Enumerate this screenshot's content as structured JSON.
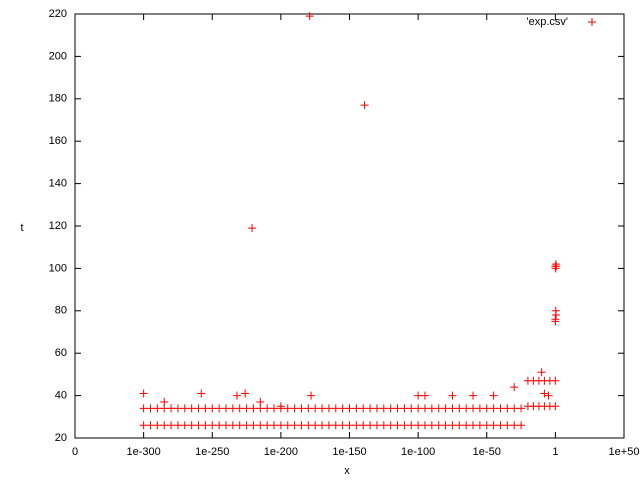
{
  "chart_data": {
    "type": "scatter",
    "x_label": "x",
    "y_label": "t",
    "xscale": "log10-exponent",
    "xlim": [
      -350,
      50
    ],
    "xticks": [
      {
        "value": -350,
        "label": "0"
      },
      {
        "value": -300,
        "label": "1e-300"
      },
      {
        "value": -250,
        "label": "1e-250"
      },
      {
        "value": -200,
        "label": "1e-200"
      },
      {
        "value": -150,
        "label": "1e-150"
      },
      {
        "value": -100,
        "label": "1e-100"
      },
      {
        "value": -50,
        "label": "1e-50"
      },
      {
        "value": 0,
        "label": "1"
      },
      {
        "value": 50,
        "label": "1e+50"
      }
    ],
    "ylim": [
      20,
      220
    ],
    "yticks": [
      20,
      40,
      60,
      80,
      100,
      120,
      140,
      160,
      180,
      200,
      220
    ],
    "legend": "top-right",
    "series": [
      {
        "name": "'exp.csv'",
        "color": "#ff0000",
        "x": [
          -300,
          -295,
          -290,
          -285,
          -280,
          -275,
          -270,
          -265,
          -260,
          -255,
          -250,
          -245,
          -240,
          -235,
          -230,
          -225,
          -220,
          -215,
          -210,
          -205,
          -200,
          -195,
          -190,
          -185,
          -180,
          -175,
          -170,
          -165,
          -160,
          -155,
          -150,
          -145,
          -140,
          -135,
          -130,
          -125,
          -120,
          -115,
          -110,
          -105,
          -100,
          -95,
          -90,
          -85,
          -80,
          -75,
          -70,
          -65,
          -60,
          -55,
          -50,
          -45,
          -40,
          -35,
          -30,
          -25,
          -300,
          -295,
          -290,
          -285,
          -280,
          -275,
          -270,
          -265,
          -260,
          -255,
          -250,
          -245,
          -240,
          -235,
          -230,
          -225,
          -220,
          -215,
          -210,
          -205,
          -200,
          -195,
          -190,
          -185,
          -180,
          -175,
          -170,
          -165,
          -160,
          -155,
          -150,
          -145,
          -140,
          -135,
          -130,
          -125,
          -120,
          -115,
          -110,
          -105,
          -100,
          -95,
          -90,
          -85,
          -80,
          -75,
          -70,
          -65,
          -60,
          -55,
          -50,
          -45,
          -40,
          -35,
          -30,
          -25,
          -300,
          -285,
          -258,
          -232,
          -226,
          -215,
          -200,
          -178,
          -100,
          -95,
          -75,
          -60,
          -45,
          -30,
          -10,
          -8,
          -5,
          -20,
          -16,
          -12,
          -8,
          -4,
          0,
          -20,
          -16,
          -12,
          -8,
          -4,
          0,
          0,
          0.5,
          0.3,
          0,
          0,
          0.4,
          0.2,
          0.6,
          -221,
          -179,
          -139
        ],
        "values": [
          26,
          26,
          26,
          26,
          26,
          26,
          26,
          26,
          26,
          26,
          26,
          26,
          26,
          26,
          26,
          26,
          26,
          26,
          26,
          26,
          26,
          26,
          26,
          26,
          26,
          26,
          26,
          26,
          26,
          26,
          26,
          26,
          26,
          26,
          26,
          26,
          26,
          26,
          26,
          26,
          26,
          26,
          26,
          26,
          26,
          26,
          26,
          26,
          26,
          26,
          26,
          26,
          26,
          26,
          26,
          26,
          34,
          34,
          34,
          34,
          34,
          34,
          34,
          34,
          34,
          34,
          34,
          34,
          34,
          34,
          34,
          34,
          34,
          34,
          34,
          34,
          34,
          34,
          34,
          34,
          34,
          34,
          34,
          34,
          34,
          34,
          34,
          34,
          34,
          34,
          34,
          34,
          34,
          34,
          34,
          34,
          34,
          34,
          34,
          34,
          34,
          34,
          34,
          34,
          34,
          34,
          34,
          34,
          34,
          34,
          34,
          34,
          41,
          37,
          41,
          40,
          41,
          37,
          35,
          40,
          40,
          40,
          40,
          40,
          40,
          44,
          51,
          41,
          40,
          35,
          35,
          35,
          35,
          35,
          35,
          47,
          47,
          47,
          47,
          47,
          47,
          76,
          78,
          80,
          75,
          101,
          102,
          100,
          101,
          119,
          219,
          177
        ]
      }
    ]
  }
}
